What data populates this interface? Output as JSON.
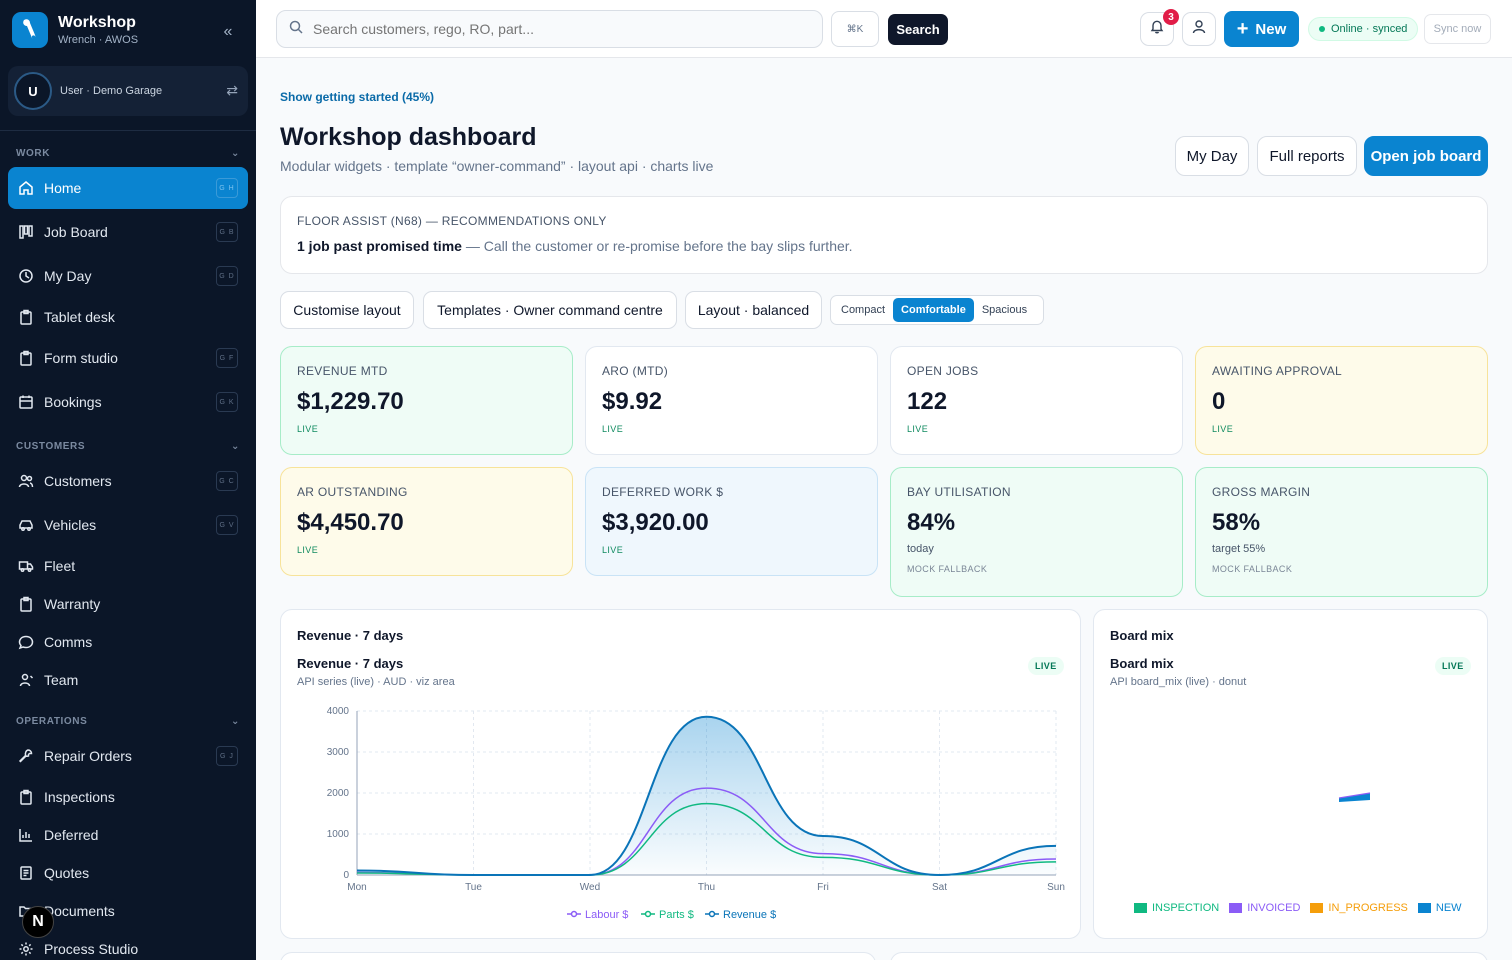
{
  "brand": {
    "title": "Workshop",
    "subtitle": "Wrench · AWOS"
  },
  "user": {
    "initial": "U",
    "label": "User · Demo Garage"
  },
  "sidebar": {
    "sections": {
      "work": "WORK",
      "customers": "CUSTOMERS",
      "operations": "OPERATIONS"
    },
    "items": [
      {
        "label": "Home",
        "kbd": "G H"
      },
      {
        "label": "Job Board",
        "kbd": "G B"
      },
      {
        "label": "My Day",
        "kbd": "G D"
      },
      {
        "label": "Tablet desk",
        "kbd": ""
      },
      {
        "label": "Form studio",
        "kbd": "G F"
      },
      {
        "label": "Bookings",
        "kbd": "G K"
      },
      {
        "label": "Customers",
        "kbd": "G C"
      },
      {
        "label": "Vehicles",
        "kbd": "G V"
      },
      {
        "label": "Fleet",
        "kbd": ""
      },
      {
        "label": "Warranty",
        "kbd": ""
      },
      {
        "label": "Comms",
        "kbd": ""
      },
      {
        "label": "Team",
        "kbd": ""
      },
      {
        "label": "Repair Orders",
        "kbd": "G J"
      },
      {
        "label": "Inspections",
        "kbd": ""
      },
      {
        "label": "Deferred",
        "kbd": ""
      },
      {
        "label": "Quotes",
        "kbd": ""
      },
      {
        "label": "Documents",
        "kbd": ""
      },
      {
        "label": "Process Studio",
        "kbd": ""
      }
    ],
    "floating_badge": "N"
  },
  "topbar": {
    "search_placeholder": "Search customers, rego, RO, part...",
    "shortcut": "⌘K",
    "search_label": "Search",
    "notification_count": "3",
    "new_label": "New",
    "status": "Online · synced",
    "sync_label": "Sync now"
  },
  "page": {
    "getting_started": "Show getting started (45%)",
    "title": "Workshop dashboard",
    "subtitle": "Modular widgets · template “owner-command” · layout api · charts live",
    "buttons": {
      "my_day": "My Day",
      "full_reports": "Full reports",
      "open_job_board": "Open job board"
    }
  },
  "assist": {
    "heading": "FLOOR ASSIST (N68) — RECOMMENDATIONS ONLY",
    "strong": "1 job past promised time",
    "text": " — Call the customer or re-promise before the bay slips further."
  },
  "controls": {
    "customise": "Customise layout",
    "templates": "Templates · Owner command centre",
    "layout": "Layout · balanced",
    "density": [
      "Compact",
      "Comfortable",
      "Spacious"
    ],
    "density_selected": "Comfortable"
  },
  "kpis": [
    {
      "label": "REVENUE MTD",
      "value": "$1,229.70",
      "tag": "LIVE"
    },
    {
      "label": "ARO (MTD)",
      "value": "$9.92",
      "tag": "LIVE"
    },
    {
      "label": "OPEN JOBS",
      "value": "122",
      "tag": "LIVE"
    },
    {
      "label": "AWAITING APPROVAL",
      "value": "0",
      "tag": "LIVE"
    },
    {
      "label": "AR OUTSTANDING",
      "value": "$4,450.70",
      "tag": "LIVE"
    },
    {
      "label": "DEFERRED WORK $",
      "value": "$3,920.00",
      "tag": "LIVE"
    },
    {
      "label": "BAY UTILISATION",
      "value": "84%",
      "sub": "today",
      "tag": "MOCK FALLBACK"
    },
    {
      "label": "GROSS MARGIN",
      "value": "58%",
      "sub": "target 55%",
      "tag": "MOCK FALLBACK"
    }
  ],
  "revenue_card": {
    "title": "Revenue · 7 days",
    "subtitle": "Revenue · 7 days",
    "caption": "API series (live) · AUD · viz area",
    "badge": "LIVE"
  },
  "board_card": {
    "title": "Board mix",
    "subtitle": "Board mix",
    "caption": "API board_mix (live) · donut",
    "badge": "LIVE"
  },
  "colors": {
    "accent": "#0a84d0",
    "labour": "#8b5cf6",
    "parts": "#10b981",
    "revenue": "#0a74b8",
    "in_progress": "#f59e0b",
    "new": "#0a84d0"
  },
  "chart_data": [
    {
      "type": "area",
      "title": "Revenue · 7 days",
      "x": [
        "Mon",
        "Tue",
        "Wed",
        "Thu",
        "Fri",
        "Sat",
        "Sun"
      ],
      "ylim": [
        0,
        4000
      ],
      "yticks": [
        0,
        1000,
        2000,
        3000,
        4000
      ],
      "grid": true,
      "legend": "bottom",
      "series": [
        {
          "name": "Labour $",
          "values": [
            60,
            0,
            0,
            2120,
            520,
            0,
            390
          ]
        },
        {
          "name": "Parts $",
          "values": [
            50,
            0,
            0,
            1740,
            430,
            0,
            320
          ]
        },
        {
          "name": "Revenue $",
          "values": [
            110,
            0,
            0,
            3860,
            950,
            0,
            710
          ]
        }
      ]
    },
    {
      "type": "pie",
      "title": "Board mix",
      "legend": "bottom",
      "categories": [
        "INSPECTION",
        "INVOICED",
        "IN_PROGRESS",
        "NEW"
      ],
      "values": [
        0,
        0,
        0,
        0
      ]
    }
  ]
}
